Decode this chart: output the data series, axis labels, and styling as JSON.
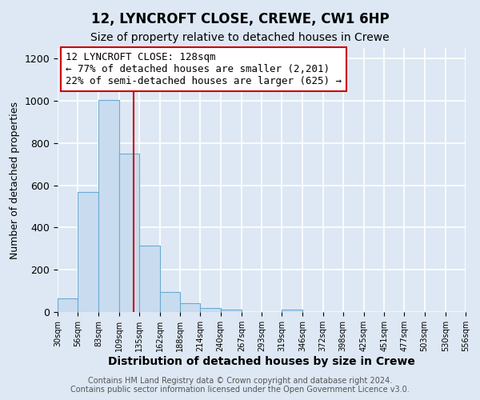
{
  "title": "12, LYNCROFT CLOSE, CREWE, CW1 6HP",
  "subtitle": "Size of property relative to detached houses in Crewe",
  "xlabel": "Distribution of detached houses by size in Crewe",
  "ylabel": "Number of detached properties",
  "bar_edges": [
    30,
    56,
    83,
    109,
    135,
    162,
    188,
    214,
    240,
    267,
    293,
    319,
    346,
    372,
    398,
    425,
    451,
    477,
    503,
    530,
    556
  ],
  "bar_heights": [
    65,
    570,
    1005,
    750,
    315,
    95,
    40,
    20,
    10,
    0,
    0,
    10,
    0,
    0,
    0,
    0,
    0,
    0,
    0,
    0
  ],
  "bar_color": "#c9dcef",
  "bar_edge_color": "#6aaad4",
  "property_line_x": 128,
  "property_line_color": "#cc0000",
  "annotation_line1": "12 LYNCROFT CLOSE: 128sqm",
  "annotation_line2": "← 77% of detached houses are smaller (2,201)",
  "annotation_line3": "22% of semi-detached houses are larger (625) →",
  "annotation_box_color": "#ffffff",
  "annotation_box_edgecolor": "#cc0000",
  "ylim": [
    0,
    1250
  ],
  "yticks": [
    0,
    200,
    400,
    600,
    800,
    1000,
    1200
  ],
  "background_color": "#dde8f4",
  "plot_bg_color": "#dde8f4",
  "grid_color": "#ffffff",
  "footer_line1": "Contains HM Land Registry data © Crown copyright and database right 2024.",
  "footer_line2": "Contains public sector information licensed under the Open Government Licence v3.0.",
  "title_fontsize": 12,
  "subtitle_fontsize": 10,
  "xlabel_fontsize": 10,
  "ylabel_fontsize": 9,
  "annotation_fontsize": 9,
  "footer_fontsize": 7
}
